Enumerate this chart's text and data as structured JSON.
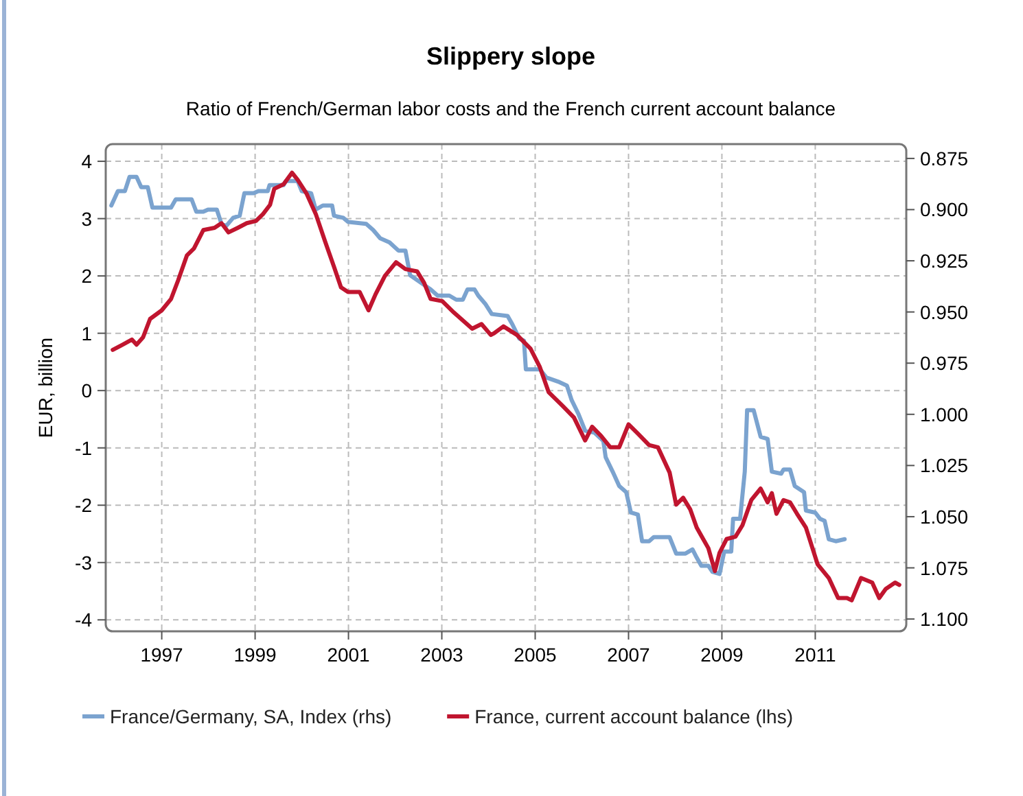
{
  "chart_data": {
    "type": "line",
    "title": "Slippery slope",
    "subtitle": "Ratio of French/German labor costs and the French current account balance",
    "ylabel": "EUR, billion",
    "xlim": [
      1995.8,
      2012.95
    ],
    "xticks": [
      1997,
      1999,
      2001,
      2003,
      2005,
      2007,
      2009,
      2011
    ],
    "ylim": [
      -4.2,
      4.3
    ],
    "yticks": [
      -4,
      -3,
      -2,
      -1,
      0,
      1,
      2,
      3,
      4
    ],
    "y2lim": [
      1.106,
      0.868
    ],
    "y2ticks": [
      {
        "value": 0.875,
        "label": "0.875"
      },
      {
        "value": 0.9,
        "label": "0.900"
      },
      {
        "value": 0.925,
        "label": "0.925"
      },
      {
        "value": 0.95,
        "label": "0.950"
      },
      {
        "value": 0.975,
        "label": "0.975"
      },
      {
        "value": 1.0,
        "label": "1.000"
      },
      {
        "value": 1.025,
        "label": "1.025"
      },
      {
        "value": 1.05,
        "label": "1.050"
      },
      {
        "value": 1.075,
        "label": "1.075"
      },
      {
        "value": 1.1,
        "label": "1.100"
      }
    ],
    "grid": true,
    "legend": "bottom",
    "line_style": "solid",
    "series": [
      {
        "name": "France/Germany, SA, Index (rhs)",
        "color": "#7ba3cf",
        "axis": "y2",
        "x": [
          1995.92,
          1996.06,
          1996.21,
          1996.31,
          1996.46,
          1996.56,
          1996.7,
          1996.8,
          1997.2,
          1997.3,
          1997.64,
          1997.74,
          1997.89,
          1997.99,
          1998.18,
          1998.28,
          1998.38,
          1998.53,
          1998.67,
          1998.77,
          1998.97,
          1999.07,
          1999.27,
          1999.31,
          1999.61,
          1999.66,
          1999.91,
          2000.0,
          2000.2,
          2000.3,
          2000.45,
          2000.65,
          2000.69,
          2000.89,
          2000.99,
          2001.38,
          2001.53,
          2001.68,
          2001.88,
          2002.07,
          2002.22,
          2002.32,
          2002.57,
          2002.76,
          2002.91,
          2003.16,
          2003.31,
          2003.45,
          2003.55,
          2003.7,
          2003.78,
          2003.93,
          2004.07,
          2004.41,
          2004.51,
          2004.66,
          2004.76,
          2004.8,
          2005.1,
          2005.24,
          2005.49,
          2005.68,
          2005.78,
          2005.93,
          2006.07,
          2006.27,
          2006.46,
          2006.51,
          2006.66,
          2006.8,
          2006.95,
          2007.05,
          2007.2,
          2007.29,
          2007.44,
          2007.54,
          2007.88,
          2008.02,
          2008.22,
          2008.37,
          2008.46,
          2008.56,
          2008.71,
          2008.8,
          2008.95,
          2009.05,
          2009.2,
          2009.24,
          2009.39,
          2009.49,
          2009.54,
          2009.68,
          2009.83,
          2009.98,
          2010.07,
          2010.27,
          2010.32,
          2010.46,
          2010.56,
          2010.76,
          2010.8,
          2011.0,
          2011.1,
          2011.2,
          2011.29,
          2011.44,
          2011.63
        ],
        "values": [
          0.898,
          0.891,
          0.891,
          0.884,
          0.884,
          0.889,
          0.889,
          0.899,
          0.899,
          0.895,
          0.895,
          0.901,
          0.901,
          0.9,
          0.9,
          0.907,
          0.908,
          0.904,
          0.903,
          0.892,
          0.892,
          0.891,
          0.891,
          0.888,
          0.888,
          0.886,
          0.886,
          0.891,
          0.892,
          0.9,
          0.898,
          0.898,
          0.903,
          0.904,
          0.906,
          0.907,
          0.91,
          0.914,
          0.916,
          0.92,
          0.92,
          0.932,
          0.936,
          0.939,
          0.942,
          0.942,
          0.944,
          0.944,
          0.939,
          0.939,
          0.942,
          0.946,
          0.951,
          0.952,
          0.956,
          0.963,
          0.964,
          0.978,
          0.978,
          0.982,
          0.984,
          0.986,
          0.993,
          1.0,
          1.008,
          1.009,
          1.013,
          1.021,
          1.028,
          1.035,
          1.038,
          1.048,
          1.049,
          1.062,
          1.062,
          1.06,
          1.06,
          1.068,
          1.068,
          1.066,
          1.07,
          1.074,
          1.074,
          1.077,
          1.078,
          1.067,
          1.067,
          1.051,
          1.051,
          1.028,
          0.998,
          0.998,
          1.011,
          1.012,
          1.028,
          1.029,
          1.027,
          1.027,
          1.035,
          1.038,
          1.047,
          1.048,
          1.051,
          1.052,
          1.061,
          1.062,
          1.061
        ]
      },
      {
        "name": "France, current account balance (lhs)",
        "color": "#c0152f",
        "x": [
          1995.95,
          1996.16,
          1996.36,
          1996.46,
          1996.6,
          1996.75,
          1997.0,
          1997.2,
          1997.35,
          1997.54,
          1997.69,
          1997.89,
          1998.13,
          1998.28,
          1998.43,
          1998.63,
          1998.82,
          1999.02,
          1999.17,
          1999.32,
          1999.41,
          1999.61,
          1999.79,
          1999.91,
          2000.1,
          2000.3,
          2000.5,
          2000.69,
          2000.84,
          2000.99,
          2001.24,
          2001.43,
          2001.58,
          2001.78,
          2002.02,
          2002.22,
          2002.47,
          2002.62,
          2002.76,
          2003.01,
          2003.26,
          2003.65,
          2003.85,
          2004.05,
          2004.12,
          2004.32,
          2004.61,
          2004.9,
          2005.1,
          2005.29,
          2005.59,
          2005.83,
          2006.07,
          2006.22,
          2006.41,
          2006.61,
          2006.8,
          2007.0,
          2007.2,
          2007.44,
          2007.63,
          2007.88,
          2008.02,
          2008.17,
          2008.32,
          2008.46,
          2008.71,
          2008.85,
          2008.95,
          2009.1,
          2009.29,
          2009.44,
          2009.63,
          2009.83,
          2009.98,
          2010.07,
          2010.17,
          2010.32,
          2010.46,
          2010.61,
          2010.8,
          2011.05,
          2011.29,
          2011.49,
          2011.68,
          2011.78,
          2011.98,
          2012.22,
          2012.37,
          2012.51,
          2012.71,
          2012.8
        ],
        "values": [
          0.71,
          0.8,
          0.89,
          0.8,
          0.93,
          1.25,
          1.4,
          1.6,
          1.92,
          2.36,
          2.48,
          2.8,
          2.84,
          2.92,
          2.76,
          2.84,
          2.92,
          2.96,
          3.08,
          3.24,
          3.52,
          3.6,
          3.8,
          3.68,
          3.44,
          3.08,
          2.6,
          2.16,
          1.8,
          1.72,
          1.72,
          1.4,
          1.68,
          2.0,
          2.24,
          2.12,
          2.08,
          1.88,
          1.6,
          1.56,
          1.36,
          1.08,
          1.16,
          0.97,
          1.0,
          1.12,
          0.97,
          0.73,
          0.41,
          -0.03,
          -0.27,
          -0.47,
          -0.87,
          -0.63,
          -0.79,
          -0.99,
          -0.99,
          -0.59,
          -0.75,
          -0.95,
          -0.99,
          -1.43,
          -1.99,
          -1.87,
          -2.07,
          -2.39,
          -2.75,
          -3.15,
          -2.83,
          -2.59,
          -2.55,
          -2.35,
          -1.91,
          -1.71,
          -1.95,
          -1.79,
          -2.15,
          -1.91,
          -1.95,
          -2.15,
          -2.39,
          -3.03,
          -3.27,
          -3.62,
          -3.62,
          -3.66,
          -3.27,
          -3.35,
          -3.62,
          -3.46,
          -3.35,
          -3.39
        ]
      }
    ]
  }
}
